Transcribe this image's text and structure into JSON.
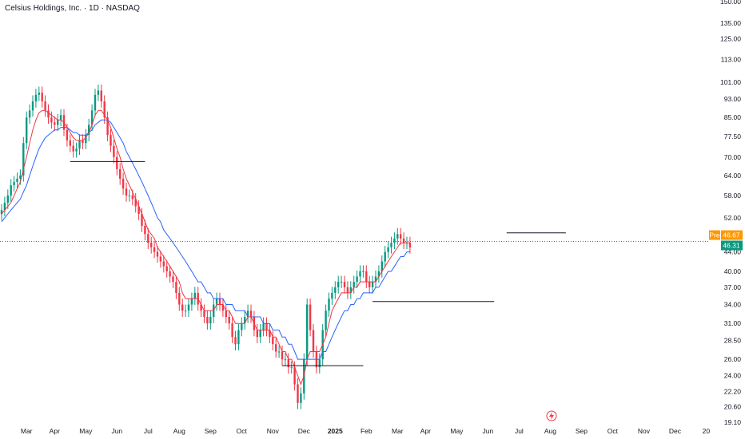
{
  "title": "Celsius Holdings, Inc. · 1D · NASDAQ",
  "colors": {
    "up": "#089981",
    "down": "#f23645",
    "ma_fast": "#f23645",
    "ma_slow": "#2962ff",
    "price_line": "#089981",
    "pre_tag": "#ff9800",
    "last_tag": "#089981",
    "axis_text": "#131722"
  },
  "chart_data": {
    "type": "candlestick",
    "y_scale": "log",
    "ylim": [
      19.1,
      150
    ],
    "y_ticks": [
      "150.00",
      "135.00",
      "125.00",
      "113.00",
      "101.00",
      "93.00",
      "85.00",
      "77.50",
      "70.00",
      "64.00",
      "58.00",
      "52.00",
      "44.00",
      "40.00",
      "37.00",
      "34.00",
      "31.00",
      "28.50",
      "26.00",
      "24.00",
      "22.20",
      "20.60",
      "19.10"
    ],
    "x_ticks": [
      {
        "label": "Mar",
        "idx": 8
      },
      {
        "label": "Apr",
        "idx": 17
      },
      {
        "label": "May",
        "idx": 27
      },
      {
        "label": "Jun",
        "idx": 37
      },
      {
        "label": "Jul",
        "idx": 47
      },
      {
        "label": "Aug",
        "idx": 57
      },
      {
        "label": "Sep",
        "idx": 67
      },
      {
        "label": "Oct",
        "idx": 77
      },
      {
        "label": "Nov",
        "idx": 87
      },
      {
        "label": "Dec",
        "idx": 97
      },
      {
        "label": "2025",
        "idx": 107,
        "bold": true
      },
      {
        "label": "Feb",
        "idx": 117
      },
      {
        "label": "Mar",
        "idx": 127
      },
      {
        "label": "Apr",
        "idx": 136
      },
      {
        "label": "May",
        "idx": 146
      },
      {
        "label": "Jun",
        "idx": 156
      },
      {
        "label": "Jul",
        "idx": 166
      },
      {
        "label": "Aug",
        "idx": 176
      },
      {
        "label": "Sep",
        "idx": 186
      },
      {
        "label": "Oct",
        "idx": 196
      },
      {
        "label": "Nov",
        "idx": 206
      },
      {
        "label": "Dec",
        "idx": 216
      },
      {
        "label": "20",
        "idx": 226
      }
    ],
    "closes": [
      54,
      56,
      58,
      61,
      62,
      63,
      64,
      75,
      85,
      88,
      92,
      95,
      96,
      92,
      88,
      85,
      83,
      82,
      84,
      86,
      80,
      76,
      74,
      72,
      73,
      76,
      75,
      78,
      82,
      88,
      95,
      97,
      92,
      85,
      78,
      74,
      70,
      66,
      63,
      60,
      58,
      58,
      57,
      55,
      53,
      50,
      48,
      46,
      45,
      44,
      43,
      42,
      41,
      40,
      39,
      38,
      36,
      34,
      33,
      33,
      34,
      35,
      36,
      34,
      33,
      32,
      31,
      32,
      34,
      35,
      34,
      33,
      32,
      31,
      29,
      28,
      30,
      31,
      32,
      33,
      32,
      30,
      29,
      30,
      31,
      30,
      29,
      28,
      27,
      27,
      26,
      26,
      25,
      25,
      23,
      21,
      22,
      26,
      34,
      30,
      27,
      25,
      26,
      30,
      33,
      35,
      36,
      37,
      38,
      38,
      37,
      36,
      37,
      38,
      39,
      40,
      40,
      38,
      37,
      38,
      39,
      40,
      42,
      44,
      45,
      46,
      47,
      48,
      47,
      46,
      46,
      45
    ],
    "ma_fast": [
      53,
      54,
      55,
      56,
      58,
      60,
      62,
      66,
      70,
      75,
      80,
      84,
      87,
      88,
      88,
      87,
      86,
      85,
      84,
      84,
      83,
      81,
      79,
      77,
      76,
      76,
      76,
      77,
      79,
      82,
      86,
      88,
      88,
      86,
      84,
      81,
      77,
      73,
      70,
      66,
      63,
      61,
      59,
      57,
      55,
      53,
      51,
      49,
      48,
      47,
      45,
      44,
      43,
      42,
      41,
      40,
      39,
      38,
      36,
      35,
      35,
      35,
      35,
      35,
      34,
      33,
      33,
      33,
      33,
      34,
      34,
      34,
      33,
      33,
      32,
      31,
      31,
      31,
      31,
      32,
      32,
      31,
      30,
      30,
      30,
      30,
      30,
      29,
      29,
      28,
      27,
      27,
      26,
      26,
      25,
      24,
      23,
      24,
      26,
      27,
      27,
      27,
      27,
      28,
      29,
      31,
      33,
      34,
      35,
      36,
      36,
      36,
      36,
      37,
      37,
      38,
      38,
      38,
      38,
      38,
      38,
      39,
      40,
      41,
      42,
      43,
      44,
      45,
      46,
      46,
      46,
      46
    ],
    "ma_slow": [
      51,
      52,
      53,
      54,
      55,
      56,
      57,
      59,
      61,
      64,
      67,
      70,
      73,
      75,
      77,
      78,
      79,
      80,
      80,
      81,
      81,
      81,
      80,
      79,
      79,
      78,
      78,
      78,
      79,
      80,
      82,
      83,
      84,
      84,
      84,
      83,
      81,
      79,
      77,
      75,
      72,
      70,
      68,
      66,
      64,
      62,
      60,
      58,
      56,
      54,
      52,
      51,
      49,
      48,
      47,
      46,
      45,
      44,
      43,
      42,
      41,
      40,
      39,
      38,
      38,
      37,
      36,
      36,
      35,
      35,
      35,
      35,
      34,
      34,
      34,
      33,
      33,
      33,
      33,
      32,
      32,
      32,
      32,
      32,
      31,
      31,
      31,
      30,
      30,
      30,
      29,
      29,
      28,
      28,
      27,
      26,
      26,
      26,
      26,
      26,
      26,
      26,
      26,
      27,
      27,
      28,
      29,
      30,
      31,
      32,
      33,
      33,
      34,
      34,
      35,
      35,
      36,
      36,
      36,
      36,
      37,
      37,
      38,
      39,
      40,
      40,
      41,
      42,
      43,
      43,
      44,
      44
    ],
    "horizontal_levels": [
      {
        "price": 68.5,
        "from": 22,
        "to": 46
      },
      {
        "price": 25.2,
        "from": 90,
        "to": 116
      },
      {
        "price": 34.5,
        "from": 119,
        "to": 158
      },
      {
        "price": 48.3,
        "from": 162,
        "to": 181
      }
    ],
    "price_line": 46.31,
    "tags": {
      "pre_label": "Pre",
      "pre_value": "46.67",
      "last_value": "46.31"
    }
  }
}
